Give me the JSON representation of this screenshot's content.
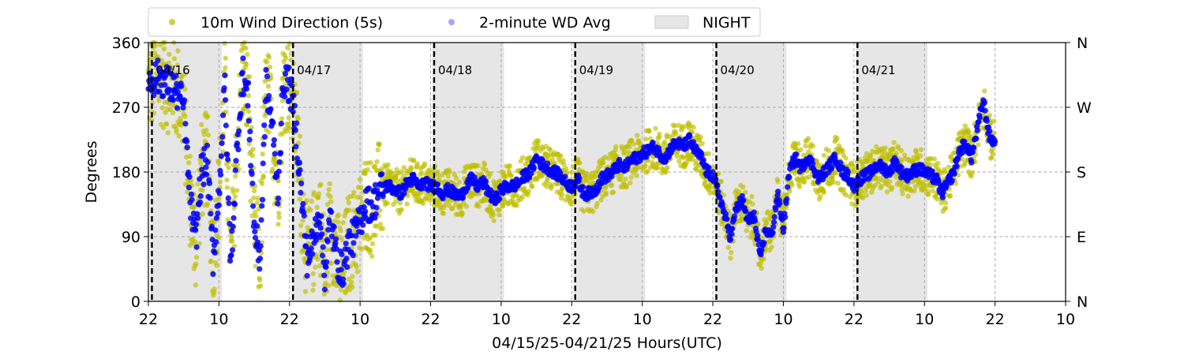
{
  "chart_data": {
    "type": "scatter",
    "xlabel": "04/15/25-04/21/25  Hours(UTC)",
    "ylabel": "Degrees",
    "x_range_hours": [
      0,
      156
    ],
    "ylim": [
      0,
      360
    ],
    "x_ticks": [
      {
        "hour": 0,
        "label": "22"
      },
      {
        "hour": 12,
        "label": "10"
      },
      {
        "hour": 24,
        "label": "22"
      },
      {
        "hour": 36,
        "label": "10"
      },
      {
        "hour": 48,
        "label": "22"
      },
      {
        "hour": 60,
        "label": "10"
      },
      {
        "hour": 72,
        "label": "22"
      },
      {
        "hour": 84,
        "label": "10"
      },
      {
        "hour": 96,
        "label": "22"
      },
      {
        "hour": 108,
        "label": "10"
      },
      {
        "hour": 120,
        "label": "22"
      },
      {
        "hour": 132,
        "label": "10"
      },
      {
        "hour": 144,
        "label": "22"
      },
      {
        "hour": 156,
        "label": "10"
      }
    ],
    "y_ticks_left": [
      {
        "value": 0,
        "label": "0"
      },
      {
        "value": 90,
        "label": "90"
      },
      {
        "value": 180,
        "label": "180"
      },
      {
        "value": 270,
        "label": "270"
      },
      {
        "value": 360,
        "label": "360"
      }
    ],
    "y_ticks_right": [
      {
        "value": 0,
        "label": "N"
      },
      {
        "value": 90,
        "label": "E"
      },
      {
        "value": 180,
        "label": "S"
      },
      {
        "value": 270,
        "label": "W"
      },
      {
        "value": 360,
        "label": "N"
      }
    ],
    "grid": true,
    "legend_placement": "top",
    "legend": [
      {
        "label": "10m Wind Direction (5s)",
        "kind": "dot",
        "color": "#bfbf00"
      },
      {
        "label": "2-minute WD Avg",
        "kind": "dot",
        "color": "#0000ff"
      },
      {
        "label": "NIGHT",
        "kind": "patch",
        "color": "#e6e6e6"
      }
    ],
    "day_markers": [
      {
        "hour": 0.6,
        "label": "04/16"
      },
      {
        "hour": 24.6,
        "label": "04/17"
      },
      {
        "hour": 48.6,
        "label": "04/18"
      },
      {
        "hour": 72.6,
        "label": "04/19"
      },
      {
        "hour": 96.6,
        "label": "04/20"
      },
      {
        "hour": 120.6,
        "label": "04/21"
      }
    ],
    "night_bands_hours": [
      [
        0.3,
        12.5
      ],
      [
        24.3,
        36.5
      ],
      [
        48.3,
        60.5
      ],
      [
        72.3,
        84.5
      ],
      [
        96.3,
        108.5
      ],
      [
        120.3,
        132.5
      ]
    ],
    "series": [
      {
        "name": "10m Wind Direction (5s)",
        "color": "#bfbf00",
        "x_hours": [
          0,
          1,
          2,
          3,
          4,
          5,
          6,
          7,
          8,
          9,
          10,
          11,
          12,
          13,
          14,
          15,
          16,
          17,
          18,
          19,
          20,
          21,
          22,
          23,
          24,
          25,
          26,
          27,
          28,
          29,
          30,
          31,
          32,
          33,
          34,
          35,
          36,
          37,
          38,
          39,
          40,
          41,
          42,
          43,
          44,
          45,
          46,
          47,
          48,
          49,
          50,
          51,
          52,
          53,
          54,
          55,
          56,
          57,
          58,
          59,
          60,
          61,
          62,
          63,
          64,
          65,
          66,
          67,
          68,
          69,
          70,
          71,
          72,
          73,
          74,
          75,
          76,
          77,
          78,
          79,
          80,
          81,
          82,
          83,
          84,
          85,
          86,
          87,
          88,
          89,
          90,
          91,
          92,
          93,
          94,
          95,
          96,
          97,
          98,
          99,
          100,
          101,
          102,
          103,
          104,
          105,
          106,
          107,
          108,
          109,
          110,
          111,
          112,
          113,
          114,
          115,
          116,
          117,
          118,
          119,
          120,
          121,
          122,
          123,
          124,
          125,
          126,
          127,
          128,
          129,
          130,
          131,
          132,
          133,
          134,
          135,
          136,
          137,
          138,
          139,
          140,
          141,
          142,
          143,
          144
        ],
        "y_deg": [
          300,
          310,
          315,
          305,
          300,
          290,
          270,
          150,
          80,
          180,
          200,
          60,
          150,
          300,
          50,
          200,
          320,
          280,
          100,
          60,
          300,
          250,
          150,
          310,
          300,
          250,
          150,
          60,
          80,
          130,
          40,
          120,
          60,
          40,
          80,
          90,
          110,
          140,
          130,
          150,
          160,
          160,
          155,
          150,
          165,
          170,
          160,
          165,
          160,
          160,
          150,
          155,
          150,
          145,
          160,
          170,
          160,
          165,
          150,
          140,
          155,
          160,
          160,
          165,
          175,
          180,
          200,
          190,
          185,
          180,
          175,
          165,
          160,
          170,
          150,
          150,
          155,
          170,
          175,
          180,
          190,
          185,
          195,
          200,
          205,
          210,
          215,
          205,
          200,
          215,
          220,
          215,
          225,
          210,
          200,
          180,
          175,
          150,
          120,
          90,
          130,
          140,
          110,
          120,
          60,
          100,
          90,
          150,
          100,
          180,
          200,
          185,
          200,
          190,
          170,
          180,
          190,
          200,
          180,
          175,
          160,
          170,
          175,
          180,
          190,
          185,
          180,
          195,
          180,
          175,
          180,
          185,
          180,
          175,
          170,
          150,
          165,
          180,
          210,
          220,
          200,
          240,
          280,
          230,
          220
        ]
      },
      {
        "name": "2-minute WD Avg",
        "color": "#0000ff",
        "x_hours": [
          0,
          1,
          2,
          3,
          4,
          5,
          6,
          7,
          8,
          9,
          10,
          11,
          12,
          13,
          14,
          15,
          16,
          17,
          18,
          19,
          20,
          21,
          22,
          23,
          24,
          25,
          26,
          27,
          28,
          29,
          30,
          31,
          32,
          33,
          34,
          35,
          36,
          37,
          38,
          39,
          40,
          41,
          42,
          43,
          44,
          45,
          46,
          47,
          48,
          49,
          50,
          51,
          52,
          53,
          54,
          55,
          56,
          57,
          58,
          59,
          60,
          61,
          62,
          63,
          64,
          65,
          66,
          67,
          68,
          69,
          70,
          71,
          72,
          73,
          74,
          75,
          76,
          77,
          78,
          79,
          80,
          81,
          82,
          83,
          84,
          85,
          86,
          87,
          88,
          89,
          90,
          91,
          92,
          93,
          94,
          95,
          96,
          97,
          98,
          99,
          100,
          101,
          102,
          103,
          104,
          105,
          106,
          107,
          108,
          109,
          110,
          111,
          112,
          113,
          114,
          115,
          116,
          117,
          118,
          119,
          120,
          121,
          122,
          123,
          124,
          125,
          126,
          127,
          128,
          129,
          130,
          131,
          132,
          133,
          134,
          135,
          136,
          137,
          138,
          139,
          140,
          141,
          142,
          143,
          144
        ],
        "y_deg": [
          305,
          310,
          312,
          305,
          298,
          290,
          270,
          150,
          80,
          180,
          195,
          60,
          150,
          300,
          50,
          200,
          320,
          280,
          100,
          60,
          300,
          250,
          150,
          310,
          300,
          250,
          150,
          60,
          80,
          130,
          40,
          120,
          60,
          40,
          80,
          90,
          110,
          140,
          130,
          150,
          160,
          160,
          155,
          150,
          165,
          170,
          160,
          165,
          160,
          160,
          150,
          155,
          150,
          145,
          160,
          170,
          160,
          165,
          150,
          140,
          155,
          160,
          160,
          165,
          175,
          180,
          200,
          190,
          185,
          180,
          175,
          165,
          160,
          170,
          150,
          150,
          155,
          170,
          175,
          180,
          190,
          185,
          195,
          200,
          205,
          210,
          215,
          205,
          200,
          215,
          220,
          215,
          225,
          210,
          200,
          180,
          175,
          150,
          120,
          90,
          130,
          140,
          110,
          120,
          60,
          100,
          90,
          150,
          100,
          180,
          200,
          185,
          200,
          190,
          170,
          180,
          190,
          200,
          180,
          175,
          160,
          170,
          175,
          180,
          190,
          185,
          180,
          195,
          180,
          175,
          180,
          185,
          180,
          175,
          170,
          150,
          165,
          180,
          210,
          220,
          200,
          240,
          280,
          230,
          220
        ]
      }
    ]
  }
}
